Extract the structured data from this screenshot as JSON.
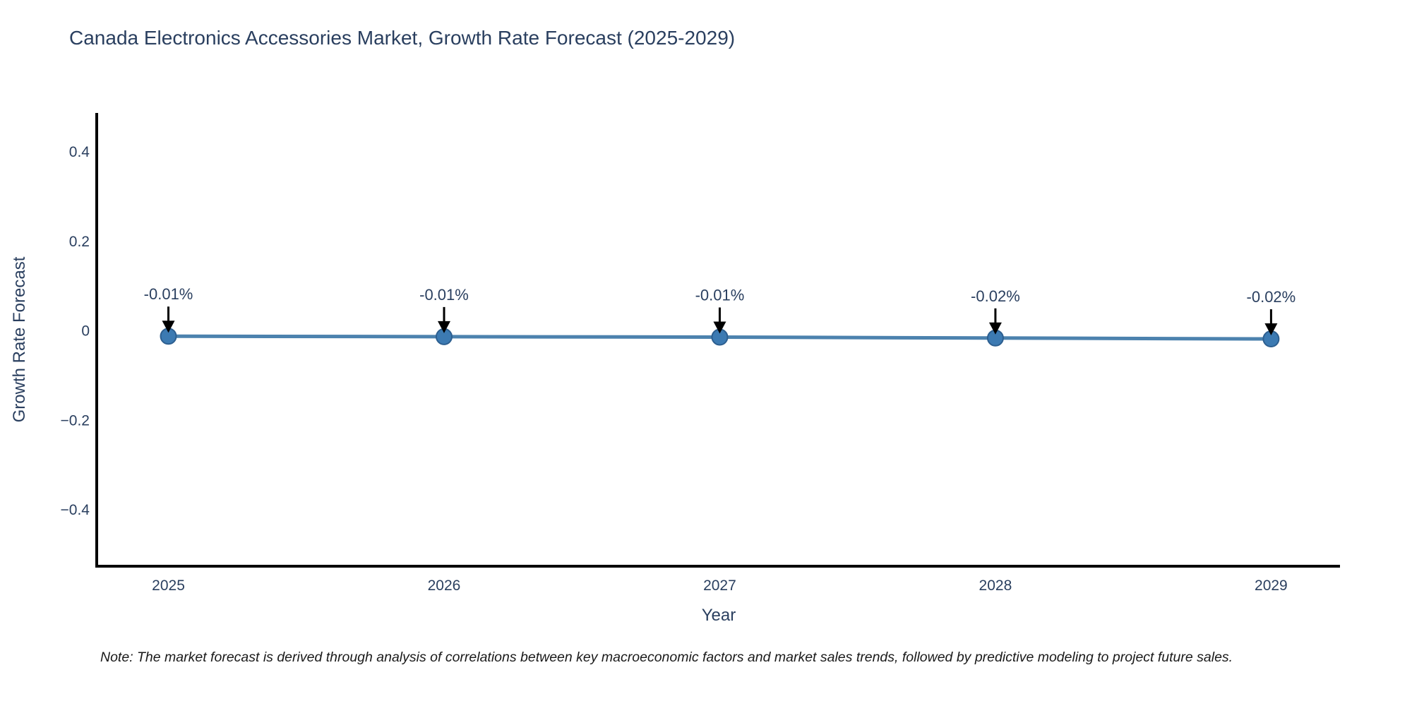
{
  "chart": {
    "title": "Canada Electronics Accessories Market, Growth Rate Forecast (2025-2029)",
    "xlabel": "Year",
    "ylabel": "Growth Rate Forecast",
    "note": "Note: The market forecast is derived through analysis of correlations between key macroeconomic factors and market sales trends, followed by predictive modeling to project future sales."
  },
  "chart_data": {
    "type": "line",
    "title": "Canada Electronics Accessories Market, Growth Rate Forecast (2025-2029)",
    "xlabel": "Year",
    "ylabel": "Growth Rate Forecast",
    "x": [
      2025,
      2026,
      2027,
      2028,
      2029
    ],
    "values": [
      -0.012,
      -0.013,
      -0.014,
      -0.016,
      -0.018
    ],
    "point_labels": [
      "-0.01%",
      "-0.01%",
      "-0.01%",
      "-0.02%",
      "-0.02%"
    ],
    "xticks": {
      "values": [
        2025,
        2026,
        2027,
        2028,
        2029
      ],
      "labels": [
        "2025",
        "2026",
        "2027",
        "2028",
        "2029"
      ]
    },
    "yticks": {
      "values": [
        0.4,
        0.2,
        0,
        -0.2,
        -0.4
      ],
      "labels": [
        "0.4",
        "0.2",
        "0",
        "−0.2",
        "−0.4"
      ]
    },
    "xlim": [
      2024.74,
      2029.25
    ],
    "ylim": [
      -0.526,
      0.487
    ],
    "grid": false,
    "legend": false,
    "annotation_style": "black-down-arrow",
    "colors": {
      "line": "#4c82ae",
      "marker": "#3c7ab2",
      "marker_edge": "#2d5f90",
      "annotation_arrow": "#000000",
      "annotation_text": "#2a3f5f",
      "axis_line": "#000000",
      "tick_text": "#2a3f5f",
      "title_text": "#2a3f5f",
      "note_text": "#1a1a1a",
      "background": "#ffffff"
    }
  }
}
